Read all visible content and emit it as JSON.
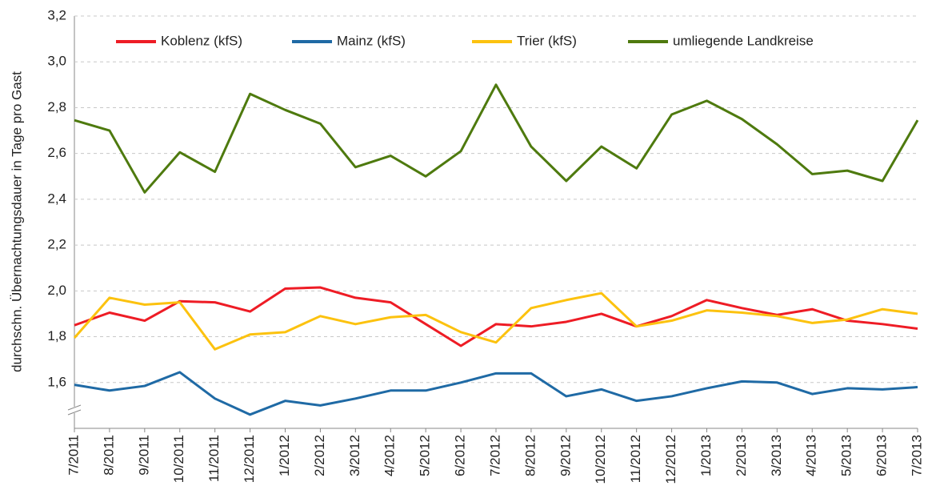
{
  "chart_data": {
    "type": "line",
    "y_label": "durchschn. Übernachtungsdauer in Tage pro Gast",
    "categories": [
      "7/2011",
      "8/2011",
      "9/2011",
      "10/2011",
      "11/2011",
      "12/2011",
      "1/2012",
      "2/2012",
      "3/2012",
      "4/2012",
      "5/2012",
      "6/2012",
      "7/2012",
      "8/2012",
      "9/2012",
      "10/2012",
      "11/2012",
      "12/2012",
      "1/2013",
      "2/2013",
      "3/2013",
      "4/2013",
      "5/2013",
      "6/2013",
      "7/2013"
    ],
    "series": [
      {
        "name": "Koblenz (kfS)",
        "color": "#ee1c25",
        "values": [
          1.85,
          1.905,
          1.87,
          1.955,
          1.95,
          1.91,
          2.01,
          2.015,
          1.97,
          1.95,
          1.855,
          1.76,
          1.855,
          1.845,
          1.865,
          1.9,
          1.845,
          1.89,
          1.96,
          1.925,
          1.895,
          1.92,
          1.87,
          1.855,
          1.835
        ]
      },
      {
        "name": "Mainz (kfS)",
        "color": "#1f6aa5",
        "values": [
          1.59,
          1.565,
          1.585,
          1.645,
          1.53,
          1.46,
          1.52,
          1.5,
          1.53,
          1.565,
          1.565,
          1.6,
          1.64,
          1.64,
          1.54,
          1.57,
          1.52,
          1.54,
          1.575,
          1.605,
          1.6,
          1.55,
          1.575,
          1.57,
          1.58
        ]
      },
      {
        "name": "Trier (kfS)",
        "color": "#fcc20f",
        "values": [
          1.795,
          1.97,
          1.94,
          1.95,
          1.745,
          1.81,
          1.82,
          1.89,
          1.855,
          1.885,
          1.895,
          1.82,
          1.775,
          1.925,
          1.96,
          1.99,
          1.845,
          1.87,
          1.915,
          1.905,
          1.89,
          1.86,
          1.875,
          1.92,
          1.9
        ]
      },
      {
        "name": "umliegende Landkreise",
        "color": "#4e7a0e",
        "values": [
          2.745,
          2.7,
          2.43,
          2.605,
          2.52,
          2.86,
          2.79,
          2.73,
          2.54,
          2.59,
          2.5,
          2.61,
          2.9,
          2.63,
          2.48,
          2.63,
          2.535,
          2.77,
          2.83,
          2.75,
          2.64,
          2.51,
          2.525,
          2.48,
          2.745
        ]
      }
    ],
    "ylim": [
      1.4,
      3.2
    ],
    "yticks": [
      {
        "value": 1.6,
        "label": "1,6"
      },
      {
        "value": 1.8,
        "label": "1,8"
      },
      {
        "value": 2.0,
        "label": "2,0"
      },
      {
        "value": 2.2,
        "label": "2,2"
      },
      {
        "value": 2.4,
        "label": "2,4"
      },
      {
        "value": 2.6,
        "label": "2,6"
      },
      {
        "value": 2.8,
        "label": "2,8"
      },
      {
        "value": 3.0,
        "label": "3,0"
      },
      {
        "value": 3.2,
        "label": "3,2"
      }
    ],
    "grid": true,
    "legend": "top"
  }
}
